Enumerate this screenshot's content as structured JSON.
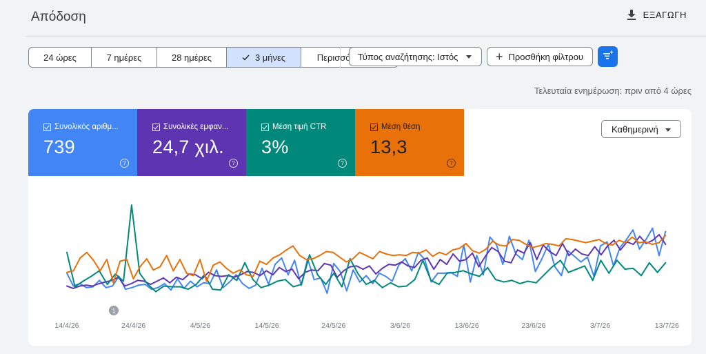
{
  "header": {
    "title": "Απόδοση",
    "export_label": "ΕΞΑΓΩΓΗ"
  },
  "date_range": {
    "options": [
      "24 ώρες",
      "7 ημέρες",
      "28 ημέρες",
      "3 μήνες",
      "Περισσότερα"
    ],
    "selected": "3 μήνες"
  },
  "filters": {
    "search_type": "Τύπος αναζήτησης: Ιστός",
    "add_filter": "Προσθήκη φίλτρου"
  },
  "last_updated": "Τελευταία ενημέρωση: πριν από 4 ώρες",
  "metrics": [
    {
      "label": "Συνολικός αριθμ...",
      "value": "739",
      "color": "#4285f4"
    },
    {
      "label": "Συνολικές εμφαν...",
      "value": "24,7 χιλ.",
      "color": "#5e35b1"
    },
    {
      "label": "Μέση τιμή CTR",
      "value": "3%",
      "color": "#00897b"
    },
    {
      "label": "Μέση θέση",
      "value": "13,3",
      "color": "#e8710a"
    }
  ],
  "granularity": "Καθημερινή",
  "annotation": "1",
  "chart_data": {
    "type": "line",
    "x_ticks": [
      "14/4/26",
      "24/4/26",
      "4/5/26",
      "14/5/26",
      "24/5/26",
      "3/6/26",
      "13/6/26",
      "23/6/26",
      "3/7/26",
      "13/7/26"
    ],
    "x_start": "14/4/26",
    "x_end": "14/7/26",
    "grid": false,
    "series": [
      {
        "name": "Συνολικός αριθμ...",
        "color": "#4285f4",
        "values": [
          38,
          22,
          25,
          20,
          21,
          29,
          20,
          22,
          34,
          18,
          20,
          23,
          24,
          18,
          20,
          25,
          17,
          31,
          19,
          28,
          21,
          26,
          25,
          42,
          20,
          27,
          36,
          25,
          19,
          23,
          44,
          24,
          49,
          57,
          36,
          54,
          23,
          56,
          30,
          32,
          13,
          50,
          40,
          16,
          42,
          27,
          35,
          25,
          38,
          34,
          28,
          48,
          56,
          41,
          64,
          55,
          27,
          38,
          38,
          39,
          34,
          73,
          27,
          60,
          36,
          83,
          74,
          49,
          84,
          62,
          55,
          79,
          40,
          56,
          74,
          46,
          35,
          66,
          59,
          52,
          58,
          34,
          72,
          77,
          47,
          70,
          80,
          92,
          68,
          80,
          94,
          60,
          90
        ]
      },
      {
        "name": "Συνολικές εμφαν...",
        "color": "#5e35b1",
        "values": [
          22,
          19,
          22,
          23,
          22,
          25,
          27,
          29,
          33,
          22,
          25,
          29,
          28,
          24,
          28,
          32,
          26,
          33,
          30,
          37,
          36,
          31,
          39,
          35,
          34,
          35,
          33,
          36,
          40,
          39,
          35,
          41,
          36,
          45,
          40,
          43,
          31,
          39,
          42,
          41,
          50,
          48,
          33,
          41,
          46,
          47,
          43,
          47,
          37,
          44,
          49,
          48,
          52,
          47,
          45,
          54,
          57,
          43,
          55,
          49,
          62,
          53,
          55,
          63,
          46,
          59,
          70,
          65,
          53,
          51,
          67,
          63,
          76,
          55,
          73,
          65,
          60,
          75,
          60,
          68,
          62,
          60,
          71,
          61,
          72,
          79,
          67,
          77,
          74,
          84,
          75,
          79,
          86,
          74
        ]
      },
      {
        "name": "Μέση τιμή CTR",
        "color": "#00897b",
        "values": [
          64,
          21,
          28,
          34,
          41,
          24,
          37,
          28,
          123,
          38,
          24,
          15,
          22,
          21,
          21,
          18,
          24,
          36,
          18,
          17,
          36,
          29,
          51,
          30,
          20,
          23,
          28,
          30,
          21,
          24,
          61,
          36,
          24,
          38,
          21,
          56,
          37,
          24,
          29,
          20,
          26,
          21,
          22,
          30,
          54,
          29,
          24,
          38,
          39,
          41,
          37,
          34,
          45,
          30,
          27,
          29,
          25,
          28,
          26,
          36,
          46,
          54,
          39,
          43,
          47,
          29,
          54,
          38,
          54,
          43,
          44,
          35,
          51,
          39,
          51
        ]
      },
      {
        "name": "Μέση θέση",
        "color": "#e8710a",
        "values": [
          39,
          41,
          57,
          64,
          54,
          41,
          55,
          26,
          53,
          55,
          31,
          46,
          56,
          42,
          46,
          60,
          41,
          55,
          38,
          35,
          55,
          28,
          48,
          52,
          44,
          38,
          42,
          36,
          34,
          53,
          49,
          57,
          61,
          67,
          72,
          60,
          55,
          56,
          60,
          65,
          64,
          58,
          52,
          56,
          64,
          60,
          56,
          65,
          62,
          60,
          61,
          60,
          64,
          63,
          67,
          59,
          64,
          61,
          67,
          69,
          75,
          66,
          63,
          68,
          78,
          73,
          72,
          80,
          79,
          74,
          70,
          72,
          75,
          74,
          72,
          81,
          80,
          78,
          76,
          78,
          80,
          75,
          73,
          79,
          76,
          83,
          76,
          77,
          74,
          76,
          85
        ]
      }
    ]
  }
}
